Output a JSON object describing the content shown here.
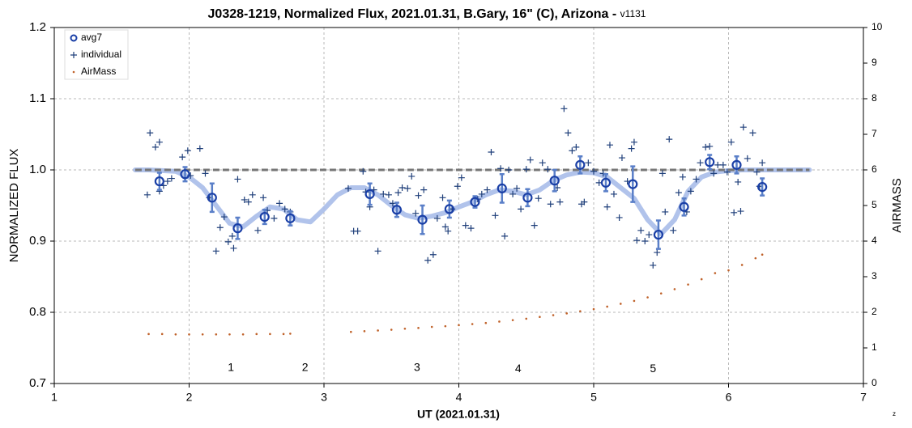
{
  "chart_data": {
    "type": "scatter",
    "title": "J0328-1219, Normalized Flux, 2021.01.31, B.Gary, 16\" (C), Arizona - ",
    "title_suffix": "v1131",
    "x_label": "UT (2021.01.31)",
    "y_label": "NORMALIZED FLUX",
    "y2_label": "AIRMASS",
    "corner_note": "z",
    "xlim": [
      1,
      7
    ],
    "xticks": [
      1,
      2,
      3,
      4,
      5,
      6,
      7
    ],
    "ylim": [
      0.7,
      1.2
    ],
    "yticks": [
      0.7,
      0.8,
      0.9,
      {
        "value": 1,
        "label": "1.0"
      },
      1.1,
      1.2
    ],
    "y2lim": [
      0,
      10
    ],
    "y2ticks": [
      0,
      1,
      2,
      3,
      4,
      5,
      6,
      7,
      8,
      9,
      10
    ],
    "grid": true,
    "legend": "upper left",
    "series": [
      {
        "name": "avg7",
        "color": "#1a3fa6",
        "error_color": "#5a7fc8",
        "x": [
          1.78,
          1.97,
          2.17,
          2.36,
          2.56,
          2.75,
          3.34,
          3.54,
          3.73,
          3.93,
          4.12,
          4.32,
          4.51,
          4.71,
          4.9,
          5.09,
          5.29,
          5.48,
          5.67,
          5.86,
          6.06,
          6.25
        ],
        "values": [
          0.984,
          0.994,
          0.961,
          0.918,
          0.934,
          0.932,
          0.966,
          0.944,
          0.93,
          0.945,
          0.955,
          0.974,
          0.961,
          0.985,
          1.007,
          0.982,
          0.98,
          0.909,
          0.948,
          1.011,
          1.007,
          0.976
        ],
        "errors": [
          0.012,
          0.01,
          0.02,
          0.015,
          0.01,
          0.01,
          0.015,
          0.01,
          0.02,
          0.012,
          0.008,
          0.02,
          0.012,
          0.015,
          0.012,
          0.012,
          0.025,
          0.02,
          0.012,
          0.01,
          0.012,
          0.012
        ]
      },
      {
        "name": "individual",
        "color": "#1f3f7a",
        "x": [
          1.71,
          1.69,
          1.75,
          1.78,
          1.78,
          1.81,
          1.84,
          1.87,
          1.95,
          1.99,
          2.01,
          2.08,
          2.12,
          2.15,
          2.2,
          2.23,
          2.26,
          2.29,
          2.32,
          2.33,
          2.36,
          2.41,
          2.44,
          2.47,
          2.51,
          2.55,
          2.58,
          2.63,
          2.67,
          2.71,
          2.75,
          3.18,
          3.22,
          3.25,
          3.29,
          3.31,
          3.34,
          3.37,
          3.4,
          3.44,
          3.48,
          3.51,
          3.55,
          3.58,
          3.62,
          3.65,
          3.68,
          3.7,
          3.74,
          3.77,
          3.81,
          3.84,
          3.88,
          3.9,
          3.92,
          3.95,
          3.99,
          4.02,
          4.05,
          4.09,
          4.14,
          4.17,
          4.21,
          4.24,
          4.27,
          4.31,
          4.34,
          4.37,
          4.4,
          4.43,
          4.46,
          4.5,
          4.53,
          4.56,
          4.59,
          4.62,
          4.66,
          4.68,
          4.73,
          4.75,
          4.78,
          4.81,
          4.84,
          4.87,
          4.91,
          4.93,
          4.96,
          5.0,
          5.04,
          5.07,
          5.1,
          5.12,
          5.15,
          5.19,
          5.21,
          5.25,
          5.28,
          5.3,
          5.32,
          5.35,
          5.38,
          5.41,
          5.44,
          5.47,
          5.51,
          5.53,
          5.56,
          5.59,
          5.63,
          5.66,
          5.69,
          5.72,
          5.76,
          5.79,
          5.83,
          5.86,
          5.89,
          5.92,
          5.96,
          5.99,
          6.02,
          6.04,
          6.07,
          6.09,
          6.11,
          6.14,
          6.18,
          6.21,
          6.23,
          6.25
        ],
        "values": [
          1.052,
          0.965,
          1.032,
          1.039,
          0.97,
          0.978,
          0.984,
          0.988,
          1.018,
          1.027,
          0.992,
          1.03,
          0.995,
          0.961,
          0.886,
          0.919,
          0.934,
          0.899,
          0.907,
          0.89,
          0.987,
          0.958,
          0.955,
          0.965,
          0.915,
          0.961,
          0.943,
          0.932,
          0.953,
          0.945,
          0.941,
          0.974,
          0.914,
          0.914,
          0.998,
          0.969,
          0.948,
          0.972,
          0.886,
          0.966,
          0.965,
          0.953,
          0.968,
          0.975,
          0.974,
          0.991,
          0.939,
          0.964,
          0.972,
          0.873,
          0.881,
          0.932,
          0.961,
          0.92,
          0.914,
          0.945,
          0.977,
          0.989,
          0.922,
          0.918,
          0.959,
          0.966,
          0.972,
          1.025,
          0.936,
          1.002,
          0.907,
          1.0,
          0.966,
          0.974,
          0.945,
          1.001,
          1.014,
          0.922,
          0.96,
          1.01,
          1.001,
          0.952,
          0.975,
          0.955,
          1.086,
          1.052,
          1.027,
          1.032,
          0.952,
          0.955,
          1.01,
          0.998,
          0.982,
          0.995,
          0.948,
          1.035,
          0.966,
          0.933,
          1.017,
          0.984,
          1.03,
          1.039,
          0.901,
          0.915,
          0.9,
          0.909,
          0.866,
          0.884,
          0.995,
          0.941,
          1.043,
          0.915,
          0.968,
          0.99,
          0.941,
          0.97,
          0.987,
          1.01,
          1.032,
          1.033,
          0.995,
          1.007,
          1.007,
          0.997,
          1.039,
          0.94,
          0.983,
          0.942,
          1.06,
          1.016,
          1.052,
          0.997,
          0.977,
          1.01
        ]
      },
      {
        "name": "AirMass",
        "color": "#c0622a",
        "axis": "y2",
        "x": [
          1.7,
          1.8,
          1.9,
          2.0,
          2.1,
          2.2,
          2.3,
          2.4,
          2.5,
          2.6,
          2.7,
          2.75,
          null,
          3.2,
          3.3,
          3.4,
          3.5,
          3.6,
          3.7,
          3.8,
          3.9,
          4.0,
          4.1,
          4.2,
          4.3,
          4.4,
          4.5,
          4.6,
          4.7,
          4.8,
          4.9,
          5.0,
          5.1,
          5.2,
          5.3,
          5.4,
          5.5,
          5.6,
          5.7,
          5.8,
          5.9,
          6.0,
          6.1,
          6.2,
          6.25
        ],
        "values": [
          1.39,
          1.39,
          1.38,
          1.38,
          1.38,
          1.38,
          1.38,
          1.38,
          1.39,
          1.39,
          1.39,
          1.4,
          null,
          1.45,
          1.47,
          1.49,
          1.51,
          1.54,
          1.56,
          1.59,
          1.61,
          1.64,
          1.67,
          1.7,
          1.74,
          1.78,
          1.82,
          1.87,
          1.92,
          1.97,
          2.03,
          2.09,
          2.16,
          2.24,
          2.32,
          2.42,
          2.53,
          2.65,
          2.78,
          2.93,
          3.1,
          3.18,
          3.33,
          3.52,
          3.62
        ]
      },
      {
        "color": "#a9bde9",
        "x": [
          1.6,
          1.7,
          1.8,
          1.9,
          2.0,
          2.1,
          2.2,
          2.3,
          2.4,
          2.5,
          2.6,
          2.7,
          2.8,
          2.9,
          3.0,
          3.1,
          3.2,
          3.3,
          3.4,
          3.5,
          3.6,
          3.7,
          3.8,
          3.9,
          4.0,
          4.1,
          4.2,
          4.3,
          4.4,
          4.5,
          4.6,
          4.7,
          4.8,
          4.9,
          5.0,
          5.1,
          5.2,
          5.3,
          5.4,
          5.5,
          5.6,
          5.7,
          5.8,
          5.9,
          6.0,
          6.1,
          6.6
        ],
        "values": [
          1.0,
          1.0,
          0.999,
          0.998,
          0.99,
          0.975,
          0.95,
          0.925,
          0.92,
          0.935,
          0.948,
          0.945,
          0.93,
          0.927,
          0.945,
          0.965,
          0.975,
          0.975,
          0.965,
          0.95,
          0.937,
          0.932,
          0.935,
          0.94,
          0.948,
          0.955,
          0.965,
          0.972,
          0.97,
          0.965,
          0.972,
          0.985,
          0.993,
          0.997,
          0.996,
          0.99,
          0.975,
          0.96,
          0.93,
          0.91,
          0.93,
          0.97,
          0.99,
          0.997,
          0.999,
          1.0,
          1.0
        ]
      },
      {
        "color": "#777777",
        "x": [
          1.6,
          6.6
        ],
        "values": [
          1.0,
          1.0
        ]
      }
    ],
    "annotations": [
      {
        "text": "1",
        "x": 2.31,
        "y": 0.722
      },
      {
        "text": "2",
        "x": 2.86,
        "y": 0.722
      },
      {
        "text": "3",
        "x": 3.69,
        "y": 0.722
      },
      {
        "text": "4",
        "x": 4.44,
        "y": 0.72
      },
      {
        "text": "5",
        "x": 5.44,
        "y": 0.72
      }
    ]
  }
}
